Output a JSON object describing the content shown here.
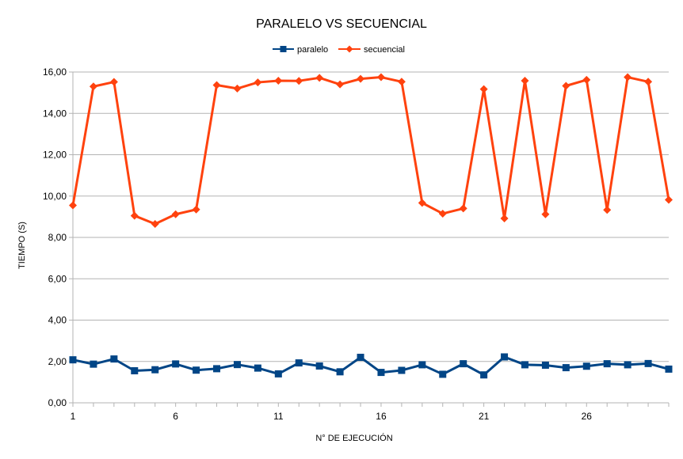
{
  "chart_data": {
    "type": "line",
    "title": "PARALELO VS SECUENCIAL",
    "xlabel": "N° DE EJECUCIÓN",
    "ylabel": "TIEMPO (S)",
    "ylim": [
      0,
      16
    ],
    "y_ticks": [
      "0,00",
      "2,00",
      "4,00",
      "6,00",
      "8,00",
      "10,00",
      "12,00",
      "14,00",
      "16,00"
    ],
    "x_tick_labels": [
      "1",
      "6",
      "11",
      "16",
      "21",
      "26"
    ],
    "grid": "horizontal",
    "legend_position": "top-center",
    "x": [
      1,
      2,
      3,
      4,
      5,
      6,
      7,
      8,
      9,
      10,
      11,
      12,
      13,
      14,
      15,
      16,
      17,
      18,
      19,
      20,
      21,
      22,
      23,
      24,
      25,
      26,
      27,
      28,
      29,
      30
    ],
    "series": [
      {
        "name": "paralelo",
        "color": "#004586",
        "marker": "square",
        "values": [
          2.08,
          1.87,
          2.12,
          1.55,
          1.6,
          1.88,
          1.58,
          1.65,
          1.85,
          1.68,
          1.4,
          1.93,
          1.78,
          1.5,
          2.2,
          1.47,
          1.57,
          1.84,
          1.38,
          1.89,
          1.35,
          2.22,
          1.84,
          1.82,
          1.7,
          1.77,
          1.89,
          1.84,
          1.9,
          1.63
        ]
      },
      {
        "name": "secuencial",
        "color": "#ff420e",
        "marker": "diamond",
        "values": [
          9.55,
          15.3,
          15.52,
          9.05,
          8.65,
          9.12,
          9.35,
          15.37,
          15.2,
          15.5,
          15.58,
          15.57,
          15.72,
          15.4,
          15.67,
          15.75,
          15.53,
          9.67,
          9.15,
          9.4,
          15.17,
          8.92,
          15.58,
          9.12,
          15.33,
          15.62,
          9.33,
          15.75,
          15.53,
          9.82
        ]
      }
    ]
  }
}
